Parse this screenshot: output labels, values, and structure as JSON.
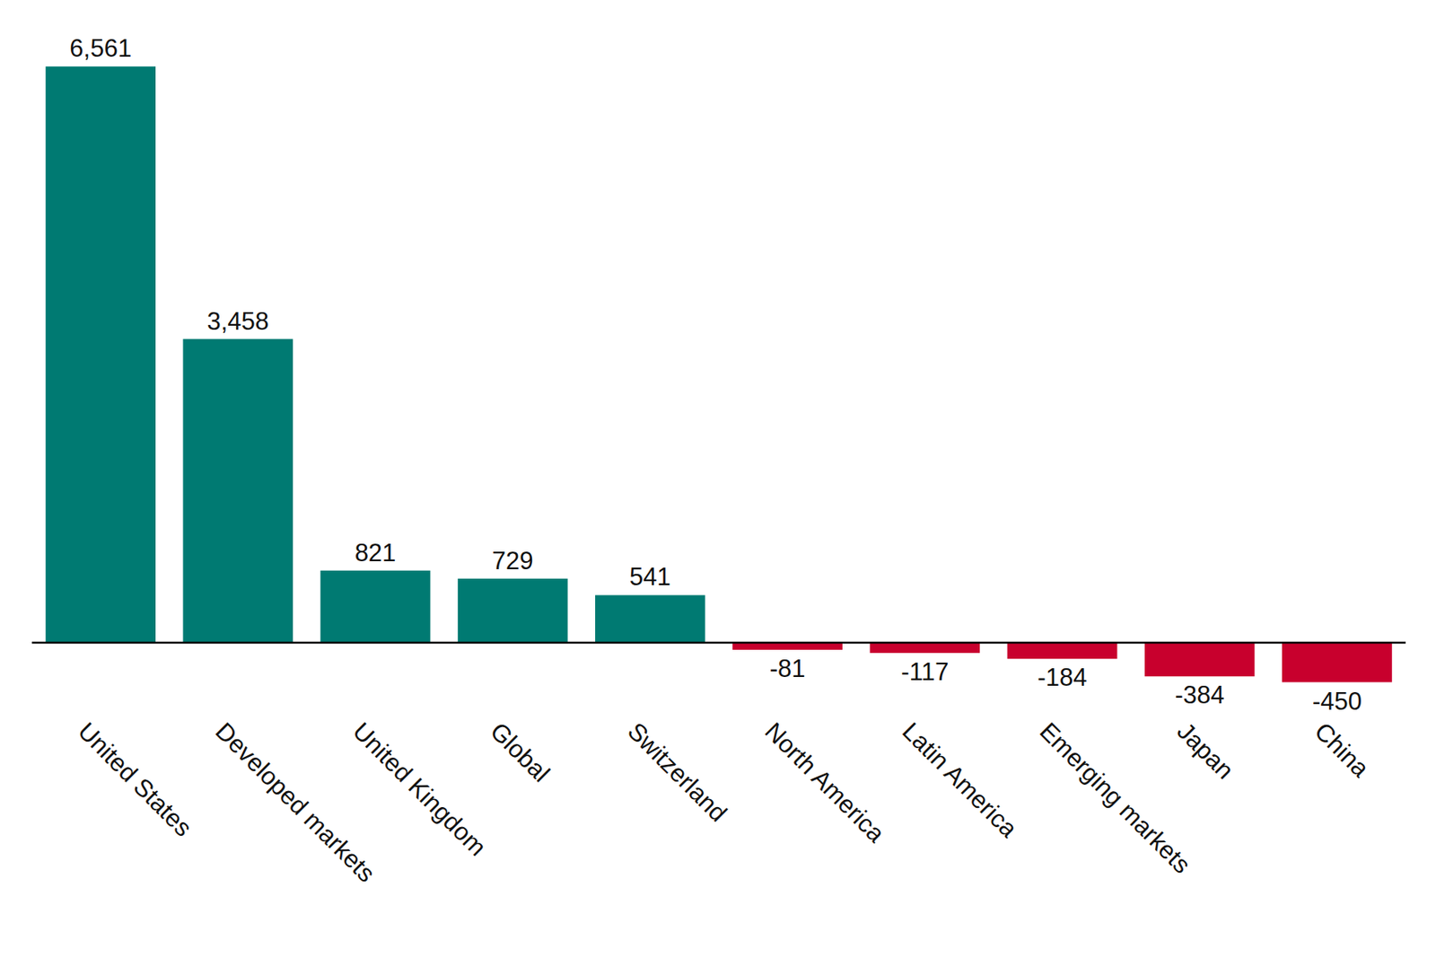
{
  "chart_data": {
    "type": "bar",
    "categories": [
      "United States",
      "Developed markets",
      "United Kingdom",
      "Global",
      "Switzerland",
      "North America",
      "Latin America",
      "Emerging markets",
      "Japan",
      "China"
    ],
    "values": [
      6561,
      3458,
      821,
      729,
      541,
      -81,
      -117,
      -184,
      -384,
      -450
    ],
    "value_labels": [
      "6,561",
      "3,458",
      "821",
      "729",
      "541",
      "-81",
      "-117",
      "-184",
      "-384",
      "-450"
    ],
    "colors": [
      "#007a72",
      "#007a72",
      "#007a72",
      "#007a72",
      "#007a72",
      "#c8002d",
      "#c8002d",
      "#c8002d",
      "#c8002d",
      "#c8002d"
    ],
    "ylim": [
      -500,
      7000
    ],
    "data_labels": true,
    "tick_labels": "x",
    "grid": false
  }
}
